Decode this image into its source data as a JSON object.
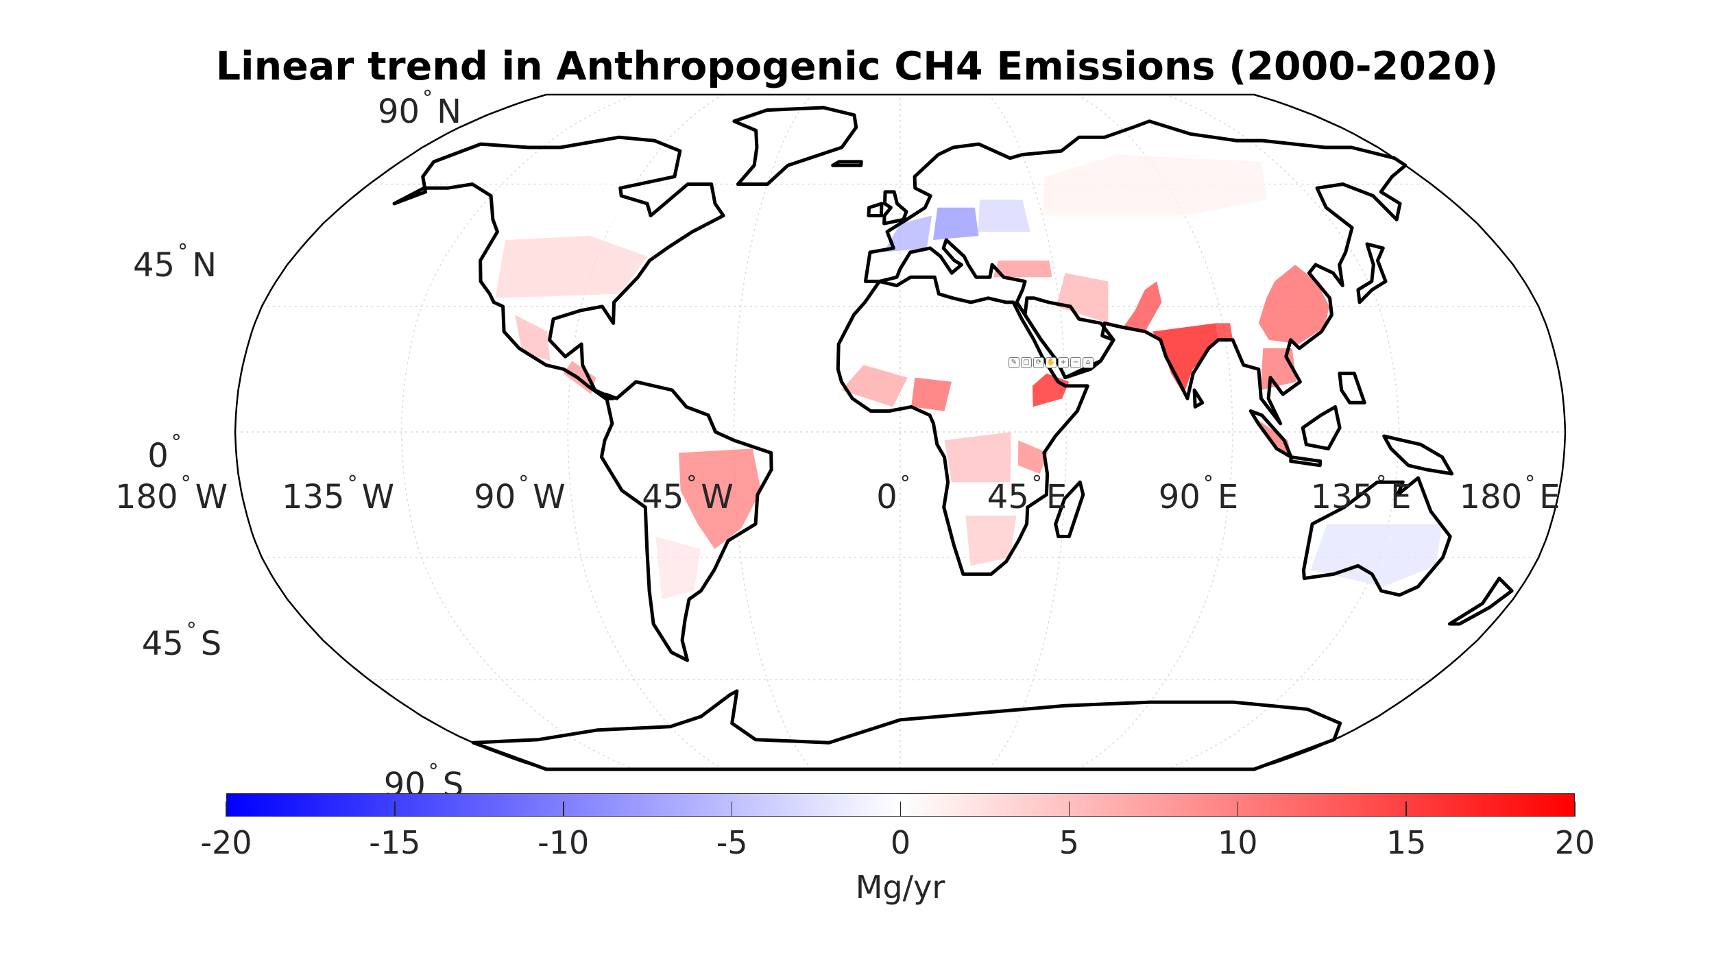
{
  "title": "Linear trend in Anthropogenic CH4 Emissions (2000-2020)",
  "map": {
    "projection": "Robinson",
    "colors": {
      "negative": "#0000ff",
      "zero": "#ffffff",
      "positive": "#ff0000",
      "coastline": "#000000",
      "graticule": "#d9d9d9"
    },
    "lat_labels": [
      {
        "value": "90",
        "hemi": "N"
      },
      {
        "value": "45",
        "hemi": "N"
      },
      {
        "value": "0",
        "hemi": ""
      },
      {
        "value": "45",
        "hemi": "S"
      },
      {
        "value": "90",
        "hemi": "S"
      }
    ],
    "lon_labels": [
      {
        "value": "180",
        "hemi": "W"
      },
      {
        "value": "135",
        "hemi": "W"
      },
      {
        "value": "90",
        "hemi": "W"
      },
      {
        "value": "45",
        "hemi": "W"
      },
      {
        "value": "0",
        "hemi": ""
      },
      {
        "value": "45",
        "hemi": "E"
      },
      {
        "value": "90",
        "hemi": "E"
      },
      {
        "value": "135",
        "hemi": "E"
      },
      {
        "value": "180",
        "hemi": "E"
      }
    ],
    "toolbar_icons": [
      "brush-icon",
      "data-tip-icon",
      "rotate-icon",
      "pan-icon",
      "zoom-in-icon",
      "zoom-out-icon",
      "home-icon"
    ]
  },
  "colorbar": {
    "min": -20,
    "max": 20,
    "ticks": [
      "-20",
      "-15",
      "-10",
      "-5",
      "0",
      "5",
      "10",
      "15",
      "20"
    ],
    "unit": "Mg/yr"
  },
  "regions": [
    {
      "name": "India",
      "trend": 18
    },
    {
      "name": "Bangladesh",
      "trend": 16
    },
    {
      "name": "Pakistan",
      "trend": 14
    },
    {
      "name": "China",
      "trend": 12
    },
    {
      "name": "Ethiopia",
      "trend": 17
    },
    {
      "name": "Nigeria",
      "trend": 12
    },
    {
      "name": "Brazil",
      "trend": 10
    },
    {
      "name": "Southeast Asia",
      "trend": 11
    },
    {
      "name": "Middle East",
      "trend": 6
    },
    {
      "name": "East Africa",
      "trend": 9
    },
    {
      "name": "Central America",
      "trend": 8
    },
    {
      "name": "Mexico",
      "trend": 5
    },
    {
      "name": "Turkey",
      "trend": 8
    },
    {
      "name": "United States",
      "trend": 3
    },
    {
      "name": "Western Europe",
      "trend": -6
    },
    {
      "name": "Central Europe",
      "trend": -8
    },
    {
      "name": "Eastern Europe",
      "trend": -3
    },
    {
      "name": "Australia",
      "trend": -2
    },
    {
      "name": "Russia",
      "trend": 1
    },
    {
      "name": "Argentina",
      "trend": 2
    },
    {
      "name": "West Africa",
      "trend": 7
    },
    {
      "name": "Central Africa",
      "trend": 5
    },
    {
      "name": "Southern Africa",
      "trend": 4
    },
    {
      "name": "Canada",
      "trend": 0
    }
  ]
}
